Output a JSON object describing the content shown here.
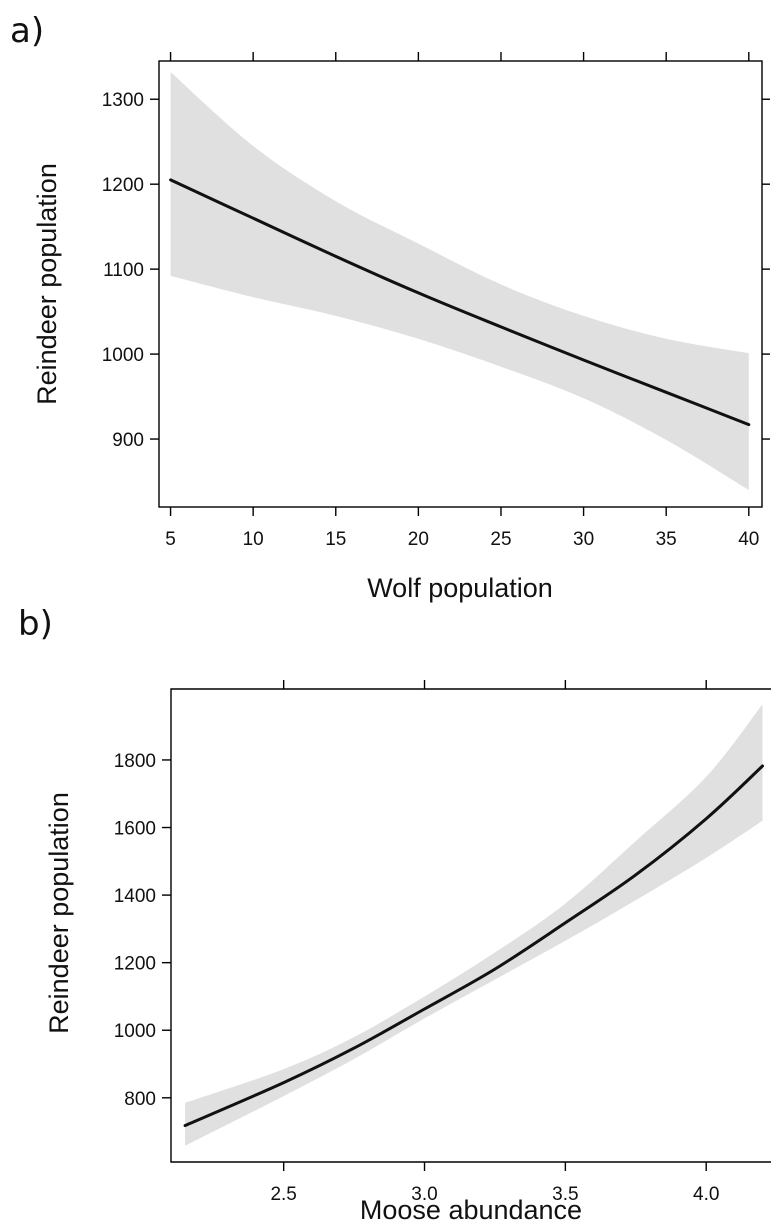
{
  "chart_data": [
    {
      "panel_label": "a)",
      "type": "line",
      "xlabel": "Wolf population",
      "ylabel": "Reindeer population",
      "xlim": [
        4.3,
        40.8
      ],
      "ylim": [
        820,
        1345
      ],
      "xticks": [
        5,
        10,
        15,
        20,
        25,
        30,
        35,
        40
      ],
      "yticks": [
        900,
        1000,
        1100,
        1200,
        1300
      ],
      "xtick_labels": [
        "5",
        "10",
        "15",
        "20",
        "25",
        "30",
        "35",
        "40"
      ],
      "ytick_labels": [
        "900",
        "1000",
        "1100",
        "1200",
        "1300"
      ],
      "grid": false,
      "fit": {
        "x": [
          5,
          10,
          15,
          20,
          25,
          30,
          35,
          40
        ],
        "y": [
          1205,
          1160,
          1115,
          1072,
          1032,
          993,
          955,
          917
        ]
      },
      "confidence_band": {
        "x": [
          5,
          10,
          15,
          20,
          25,
          30,
          35,
          40
        ],
        "lower": [
          1092,
          1067,
          1045,
          1018,
          985,
          948,
          899,
          840
        ],
        "upper": [
          1332,
          1245,
          1180,
          1130,
          1082,
          1045,
          1018,
          1001
        ]
      },
      "colors": {
        "line": "#111111",
        "band": "#e0e0e0"
      }
    },
    {
      "panel_label": "b)",
      "type": "line",
      "xlabel": "Moose abundance",
      "ylabel": "Reindeer population",
      "xlim": [
        2.1,
        4.23
      ],
      "ylim": [
        610,
        2010
      ],
      "xticks": [
        2.5,
        3.0,
        3.5,
        4.0
      ],
      "yticks": [
        800,
        1000,
        1200,
        1400,
        1600,
        1800
      ],
      "xtick_labels": [
        "2.5",
        "3.0",
        "3.5",
        "4.0"
      ],
      "ytick_labels": [
        "800",
        "1000",
        "1200",
        "1400",
        "1600",
        "1800"
      ],
      "grid": false,
      "fit": {
        "x": [
          2.15,
          2.5,
          2.75,
          3.0,
          3.25,
          3.5,
          3.75,
          4.0,
          4.2
        ],
        "y": [
          718,
          845,
          947,
          1063,
          1181,
          1318,
          1460,
          1626,
          1782
        ]
      },
      "confidence_band": {
        "x": [
          2.15,
          2.5,
          2.75,
          3.0,
          3.25,
          3.5,
          3.75,
          4.0,
          4.2
        ],
        "lower": [
          658,
          805,
          915,
          1035,
          1150,
          1265,
          1385,
          1510,
          1620
        ],
        "upper": [
          785,
          885,
          980,
          1100,
          1230,
          1375,
          1560,
          1750,
          1965
        ]
      },
      "colors": {
        "line": "#111111",
        "band": "#e0e0e0"
      }
    }
  ]
}
